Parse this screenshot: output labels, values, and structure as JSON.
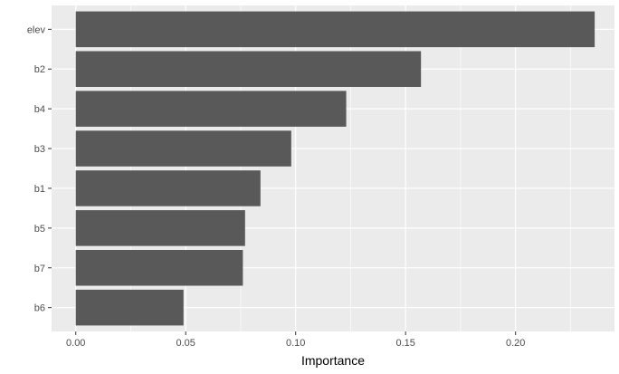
{
  "chart_data": {
    "type": "bar",
    "orientation": "horizontal",
    "categories": [
      "elev",
      "b2",
      "b4",
      "b3",
      "b1",
      "b5",
      "b7",
      "b6"
    ],
    "values": [
      0.236,
      0.157,
      0.123,
      0.098,
      0.084,
      0.077,
      0.076,
      0.049
    ],
    "xlabel": "Importance",
    "ylabel": "",
    "xlim": [
      -0.011,
      0.245
    ],
    "xticks": [
      0.0,
      0.05,
      0.1,
      0.15,
      0.2
    ],
    "xtick_labels": [
      "0.00",
      "0.05",
      "0.10",
      "0.15",
      "0.20"
    ],
    "grid": true,
    "colors": {
      "bar": "#595959",
      "panel": "#ebebeb",
      "grid_major": "#ffffff",
      "tick_text": "#4d4d4d"
    }
  }
}
